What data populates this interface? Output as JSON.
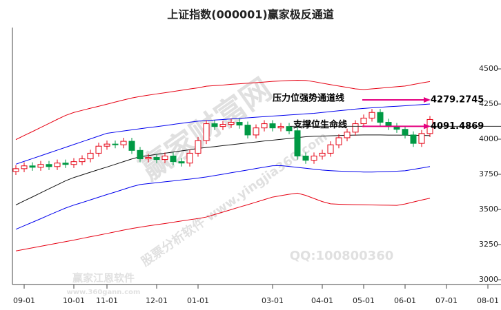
{
  "chart_data": {
    "type": "candlestick",
    "title": "上证指数(000001)赢家极反通道",
    "categories": [
      null,
      "09-01",
      null,
      null,
      null,
      null,
      null,
      "10-01",
      null,
      null,
      null,
      "11-01",
      null,
      null,
      null,
      null,
      null,
      "12-01",
      null,
      null,
      null,
      null,
      "01-01",
      null,
      null,
      null,
      null,
      null,
      null,
      null,
      null,
      "03-01",
      null,
      null,
      null,
      null,
      null,
      "04-01",
      null,
      null,
      null,
      null,
      "05-01",
      null,
      null,
      null,
      null,
      "06-01",
      null,
      null,
      null,
      null,
      "07-01",
      null,
      null,
      null,
      null,
      "08-01"
    ],
    "open": [
      3770,
      3790,
      3810,
      3800,
      3820,
      3805,
      3830,
      3820,
      3840,
      3860,
      3900,
      3950,
      3965,
      3960,
      3985,
      3920,
      3860,
      3870,
      3855,
      3880,
      3840,
      3830,
      3900,
      3990,
      4110,
      4090,
      4105,
      4120,
      4100,
      4030,
      4080,
      4110,
      4080,
      4090,
      4060,
      3880,
      3850,
      3880,
      3900,
      3960,
      4010,
      4050,
      4110,
      4150,
      4190,
      4120,
      4090,
      4070,
      4030,
      3970,
      4040,
      null,
      null,
      null,
      null,
      null,
      null,
      null
    ],
    "high": [
      3815,
      3835,
      3835,
      3845,
      3845,
      3855,
      3855,
      3865,
      3885,
      3925,
      3975,
      3990,
      3990,
      4010,
      4010,
      3945,
      3895,
      3895,
      3905,
      3905,
      3865,
      3925,
      4015,
      4135,
      4135,
      4130,
      4145,
      4145,
      4125,
      4105,
      4135,
      4135,
      4115,
      4115,
      4085,
      3905,
      3905,
      3925,
      3985,
      4035,
      4075,
      4135,
      4175,
      4215,
      4215,
      4145,
      4115,
      4095,
      4055,
      4065,
      4165,
      null,
      null,
      null,
      null,
      null,
      null,
      null
    ],
    "low": [
      3745,
      3765,
      3775,
      3775,
      3780,
      3780,
      3795,
      3795,
      3815,
      3835,
      3875,
      3925,
      3935,
      3935,
      3895,
      3835,
      3835,
      3830,
      3830,
      3815,
      3805,
      3805,
      3875,
      3965,
      4065,
      4065,
      4080,
      4075,
      4005,
      4005,
      4055,
      4055,
      4055,
      4035,
      3855,
      3825,
      3825,
      3855,
      3875,
      3935,
      3985,
      4025,
      4085,
      4125,
      4095,
      4065,
      4045,
      4005,
      3945,
      3945,
      4015,
      null,
      null,
      null,
      null,
      null,
      null,
      null
    ],
    "close": [
      3790,
      3810,
      3800,
      3820,
      3805,
      3830,
      3820,
      3840,
      3860,
      3900,
      3950,
      3965,
      3960,
      3985,
      3920,
      3860,
      3870,
      3855,
      3880,
      3840,
      3830,
      3900,
      3990,
      4110,
      4090,
      4105,
      4120,
      4100,
      4030,
      4080,
      4110,
      4080,
      4090,
      4060,
      3880,
      3850,
      3880,
      3900,
      3960,
      4010,
      4050,
      4110,
      4150,
      4190,
      4120,
      4090,
      4070,
      4030,
      3970,
      4040,
      4140,
      null,
      null,
      null,
      null,
      null,
      null,
      null
    ],
    "up_color": "#e60012",
    "down_color": "#009944",
    "lines": [
      {
        "color": "#e60012",
        "values": [
          3997,
          4026,
          4054,
          4083,
          4112,
          4141,
          4169,
          4190,
          4205,
          4220,
          4234,
          4249,
          4264,
          4279,
          4293,
          4304,
          4313,
          4322,
          4330,
          4339,
          4348,
          4357,
          4365,
          4377,
          4381,
          4385,
          4390,
          4394,
          4398,
          4402,
          4406,
          4411,
          4414,
          4417,
          4419,
          4418,
          4409,
          4398,
          4388,
          4378,
          4368,
          4358,
          4353,
          4358,
          4363,
          4368,
          4373,
          4378,
          4389,
          4400,
          4410,
          null,
          null,
          null,
          null,
          null,
          null,
          null
        ]
      },
      {
        "color": "#0000ee",
        "values": [
          3822,
          3842,
          3862,
          3882,
          3902,
          3922,
          3942,
          3962,
          3982,
          4002,
          4022,
          4042,
          4050,
          4058,
          4066,
          4074,
          4082,
          4089,
          4097,
          4105,
          4113,
          4121,
          4128,
          4132,
          4136,
          4140,
          4144,
          4148,
          4152,
          4156,
          4160,
          4164,
          4168,
          4172,
          4176,
          4180,
          4184,
          4190,
          4196,
          4202,
          4208,
          4214,
          4219,
          4223,
          4227,
          4231,
          4234,
          4238,
          4242,
          4246,
          4250,
          null,
          null,
          null,
          null,
          null,
          null,
          null
        ]
      },
      {
        "color": "#111111",
        "values": [
          3532,
          3561,
          3589,
          3618,
          3647,
          3675,
          3704,
          3727,
          3746,
          3765,
          3784,
          3802,
          3821,
          3840,
          3859,
          3875,
          3883,
          3892,
          3900,
          3908,
          3917,
          3925,
          3934,
          3941,
          3947,
          3954,
          3960,
          3967,
          3974,
          3980,
          3987,
          3993,
          3999,
          4005,
          4011,
          4017,
          4021,
          4022,
          4024,
          4026,
          4028,
          4029,
          4030,
          4030,
          4030,
          4029,
          4029,
          4028,
          4027,
          4027,
          4025,
          null,
          null,
          null,
          null,
          null,
          null,
          null
        ]
      },
      {
        "color": "#0000ee",
        "values": [
          3359,
          3384,
          3409,
          3434,
          3460,
          3485,
          3510,
          3531,
          3549,
          3568,
          3587,
          3606,
          3624,
          3643,
          3662,
          3677,
          3684,
          3690,
          3697,
          3703,
          3710,
          3716,
          3723,
          3731,
          3741,
          3751,
          3761,
          3771,
          3781,
          3791,
          3801,
          3811,
          3812,
          3806,
          3799,
          3793,
          3786,
          3780,
          3776,
          3773,
          3771,
          3769,
          3766,
          3766,
          3768,
          3770,
          3772,
          3775,
          3785,
          3795,
          3805,
          null,
          null,
          null,
          null,
          null,
          null,
          null
        ]
      },
      {
        "color": "#e60012",
        "values": [
          3205,
          3216,
          3227,
          3238,
          3249,
          3260,
          3271,
          3282,
          3294,
          3306,
          3317,
          3329,
          3341,
          3353,
          3364,
          3374,
          3383,
          3392,
          3400,
          3409,
          3418,
          3427,
          3435,
          3446,
          3464,
          3481,
          3499,
          3517,
          3534,
          3552,
          3570,
          3588,
          3598,
          3608,
          3616,
          3600,
          3578,
          3556,
          3540,
          3537,
          3535,
          3534,
          3533,
          3532,
          3531,
          3530,
          3529,
          3539,
          3553,
          3567,
          3580,
          null,
          null,
          null,
          null,
          null,
          null,
          null
        ]
      }
    ],
    "ylim": [
      2966,
      4794
    ],
    "yticks": [
      3000,
      3250,
      3500,
      3750,
      4000,
      4250,
      4500
    ],
    "annotations": [
      {
        "text": "压力位强势通道线",
        "value": 4279.2745,
        "color": "#e4007f"
      },
      {
        "text": "支撑位生命线",
        "value": 4091.4869,
        "color": "#e4007f",
        "line_color": "#333333"
      }
    ],
    "watermarks": [
      "赢家财富网",
      "股票分析软件 www.yingjia360.com",
      "QQ:100800360",
      "赢家江恩软件",
      "www.360gann.com"
    ]
  }
}
